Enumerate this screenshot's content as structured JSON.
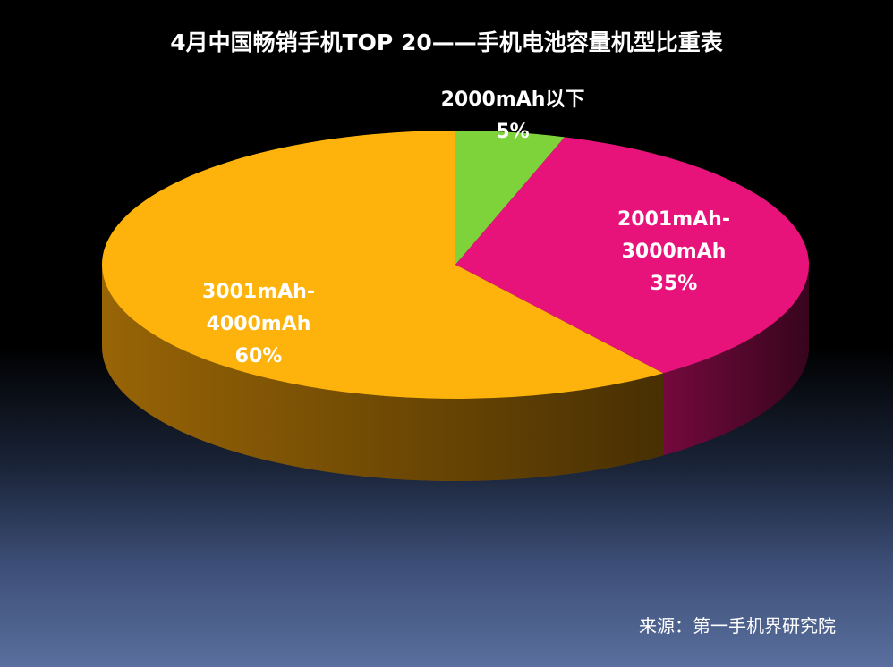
{
  "chart_data": {
    "type": "pie",
    "title": "4月中国畅销手机TOP 20——手机电池容量机型比重表",
    "slices": [
      {
        "label": "2000mAh以下",
        "value": 5,
        "value_label": "5%",
        "color": "#7ed23a",
        "side_color": "#4a7a20"
      },
      {
        "label": "2001mAh-3000mAh",
        "value": 35,
        "value_label": "35%",
        "color": "#e8137a",
        "side_color": "#7a0a40"
      },
      {
        "label": "3001mAh-4000mAh",
        "value": 60,
        "value_label": "60%",
        "color": "#fdb30b",
        "side_color": "#a06a06"
      }
    ]
  },
  "source": "来源：第一手机界研究院"
}
